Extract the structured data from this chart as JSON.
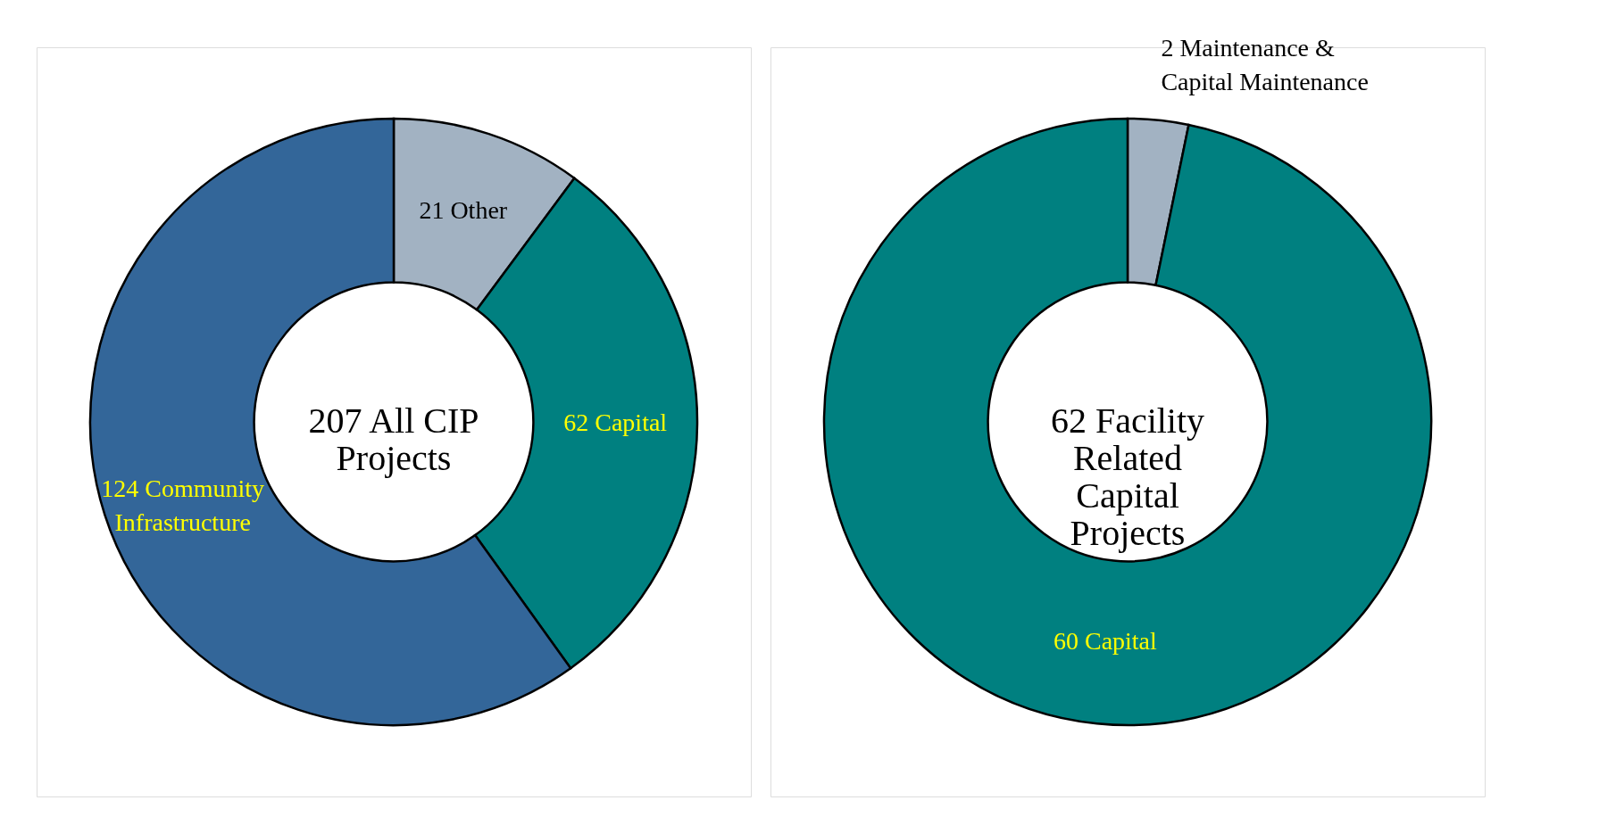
{
  "chart_data": [
    {
      "type": "donut",
      "categories": [
        "21 Other",
        "62 Capital",
        "124 Community Infrastructure"
      ],
      "values": [
        21,
        62,
        124
      ],
      "colors": [
        "#a2b2c2",
        "#008080",
        "#336699"
      ],
      "legend": false,
      "annotations": [
        "207 All CIP Projects"
      ]
    },
    {
      "type": "donut",
      "categories": [
        "2 Maintenance & Capital Maintenance",
        "60 Capital"
      ],
      "values": [
        2,
        60
      ],
      "colors": [
        "#a2b2c2",
        "#008080"
      ],
      "legend": false,
      "annotations": [
        "62 Facility Related Capital Projects"
      ]
    }
  ]
}
